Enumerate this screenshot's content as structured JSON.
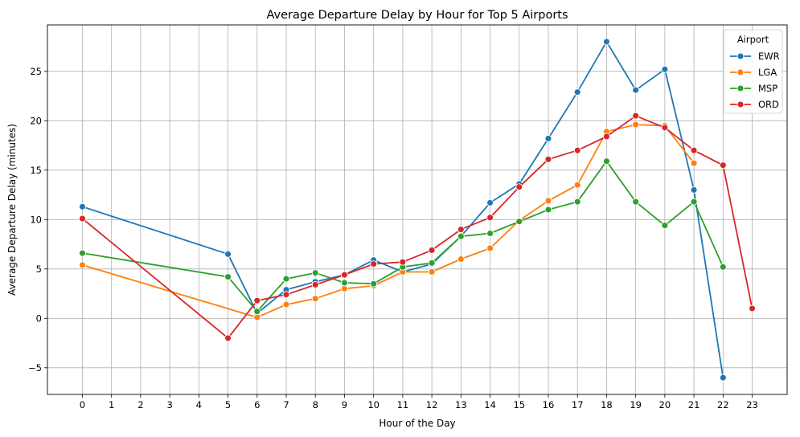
{
  "chart_data": {
    "type": "line",
    "title": "Average Departure Delay by Hour for Top 5 Airports",
    "xlabel": "Hour of the Day",
    "ylabel": "Average Departure Delay (minutes)",
    "xlim": [
      -1.2,
      24.2
    ],
    "ylim": [
      -7.7,
      29.7
    ],
    "xticks": [
      0,
      1,
      2,
      3,
      4,
      5,
      6,
      7,
      8,
      9,
      10,
      11,
      12,
      13,
      14,
      15,
      16,
      17,
      18,
      19,
      20,
      21,
      22,
      23
    ],
    "xtick_labels": [
      "0",
      "1",
      "2",
      "3",
      "4",
      "5",
      "6",
      "7",
      "8",
      "9",
      "10",
      "11",
      "12",
      "13",
      "14",
      "15",
      "16",
      "17",
      "18",
      "19",
      "20",
      "21",
      "22",
      "23"
    ],
    "yticks": [
      -5,
      0,
      5,
      10,
      15,
      20,
      25
    ],
    "ytick_labels": [
      "−5",
      "0",
      "5",
      "10",
      "15",
      "20",
      "25"
    ],
    "grid": true,
    "legend": {
      "title": "Airport",
      "placement": "top-right"
    },
    "series": [
      {
        "name": "EWR",
        "color": "#1f77b4",
        "x": [
          0,
          5,
          6,
          7,
          8,
          9,
          10,
          11,
          12,
          13,
          14,
          15,
          16,
          17,
          18,
          19,
          20,
          21,
          22
        ],
        "y": [
          11.3,
          6.5,
          0.5,
          2.9,
          3.7,
          4.4,
          5.9,
          4.7,
          5.5,
          8.3,
          11.7,
          13.6,
          18.2,
          22.9,
          28.0,
          23.1,
          25.2,
          13.0,
          -6.0
        ]
      },
      {
        "name": "LGA",
        "color": "#ff7f0e",
        "x": [
          0,
          6,
          7,
          8,
          9,
          10,
          11,
          12,
          13,
          14,
          15,
          16,
          17,
          18,
          19,
          20,
          21
        ],
        "y": [
          5.4,
          0.1,
          1.4,
          2.0,
          3.0,
          3.3,
          4.7,
          4.7,
          6.0,
          7.1,
          9.9,
          11.9,
          13.5,
          18.9,
          19.6,
          19.5,
          15.7
        ]
      },
      {
        "name": "MSP",
        "color": "#2ca02c",
        "x": [
          0,
          5,
          6,
          7,
          8,
          9,
          10,
          11,
          12,
          13,
          14,
          15,
          16,
          17,
          18,
          19,
          20,
          21,
          22
        ],
        "y": [
          6.6,
          4.2,
          0.7,
          4.0,
          4.6,
          3.6,
          3.5,
          5.2,
          5.6,
          8.3,
          8.6,
          9.8,
          11.0,
          11.8,
          15.9,
          11.8,
          9.4,
          11.8,
          5.2
        ]
      },
      {
        "name": "ORD",
        "color": "#d62728",
        "x": [
          0,
          5,
          6,
          7,
          8,
          9,
          10,
          11,
          12,
          13,
          14,
          15,
          16,
          17,
          18,
          19,
          20,
          21,
          22,
          23
        ],
        "y": [
          10.1,
          -2.0,
          1.8,
          2.4,
          3.4,
          4.4,
          5.5,
          5.7,
          6.9,
          9.0,
          10.2,
          13.3,
          16.1,
          17.0,
          18.4,
          20.5,
          19.3,
          17.0,
          15.5,
          1.0
        ]
      }
    ]
  }
}
